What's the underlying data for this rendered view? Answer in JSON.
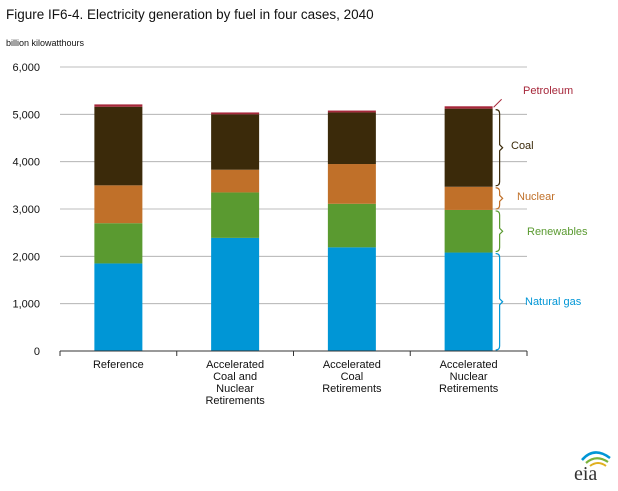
{
  "chart_data": {
    "type": "bar",
    "stacked": true,
    "title": "Figure IF6-4. Electricity generation by fuel in four cases, 2040",
    "ylabel": "billion kilowatthours",
    "xlabel": "",
    "ylim": [
      0,
      6000
    ],
    "yticks": [
      0,
      1000,
      2000,
      3000,
      4000,
      5000,
      6000
    ],
    "ytick_labels": [
      "0",
      "1,000",
      "2,000",
      "3,000",
      "4,000",
      "5,000",
      "6,000"
    ],
    "grid": true,
    "legend": "right",
    "categories": [
      [
        "Reference"
      ],
      [
        "Accelerated",
        "Coal and",
        "Nuclear",
        "Retirements"
      ],
      [
        "Accelerated",
        "Coal",
        "Retirements"
      ],
      [
        "Accelerated",
        "Nuclear",
        "Retirements"
      ]
    ],
    "series": [
      {
        "name": "Natural gas",
        "color": "#0096d6",
        "values": [
          1850,
          2390,
          2190,
          2080
        ]
      },
      {
        "name": "Renewables",
        "color": "#5a9a30",
        "values": [
          850,
          960,
          920,
          900
        ]
      },
      {
        "name": "Nuclear",
        "color": "#c07029",
        "values": [
          800,
          480,
          840,
          490
        ]
      },
      {
        "name": "Coal",
        "color": "#3b2a0a",
        "values": [
          1660,
          1170,
          1090,
          1650
        ]
      },
      {
        "name": "Petroleum",
        "color": "#a6273a",
        "values": [
          50,
          40,
          40,
          50
        ]
      }
    ]
  },
  "logo": {
    "text": "eia"
  }
}
